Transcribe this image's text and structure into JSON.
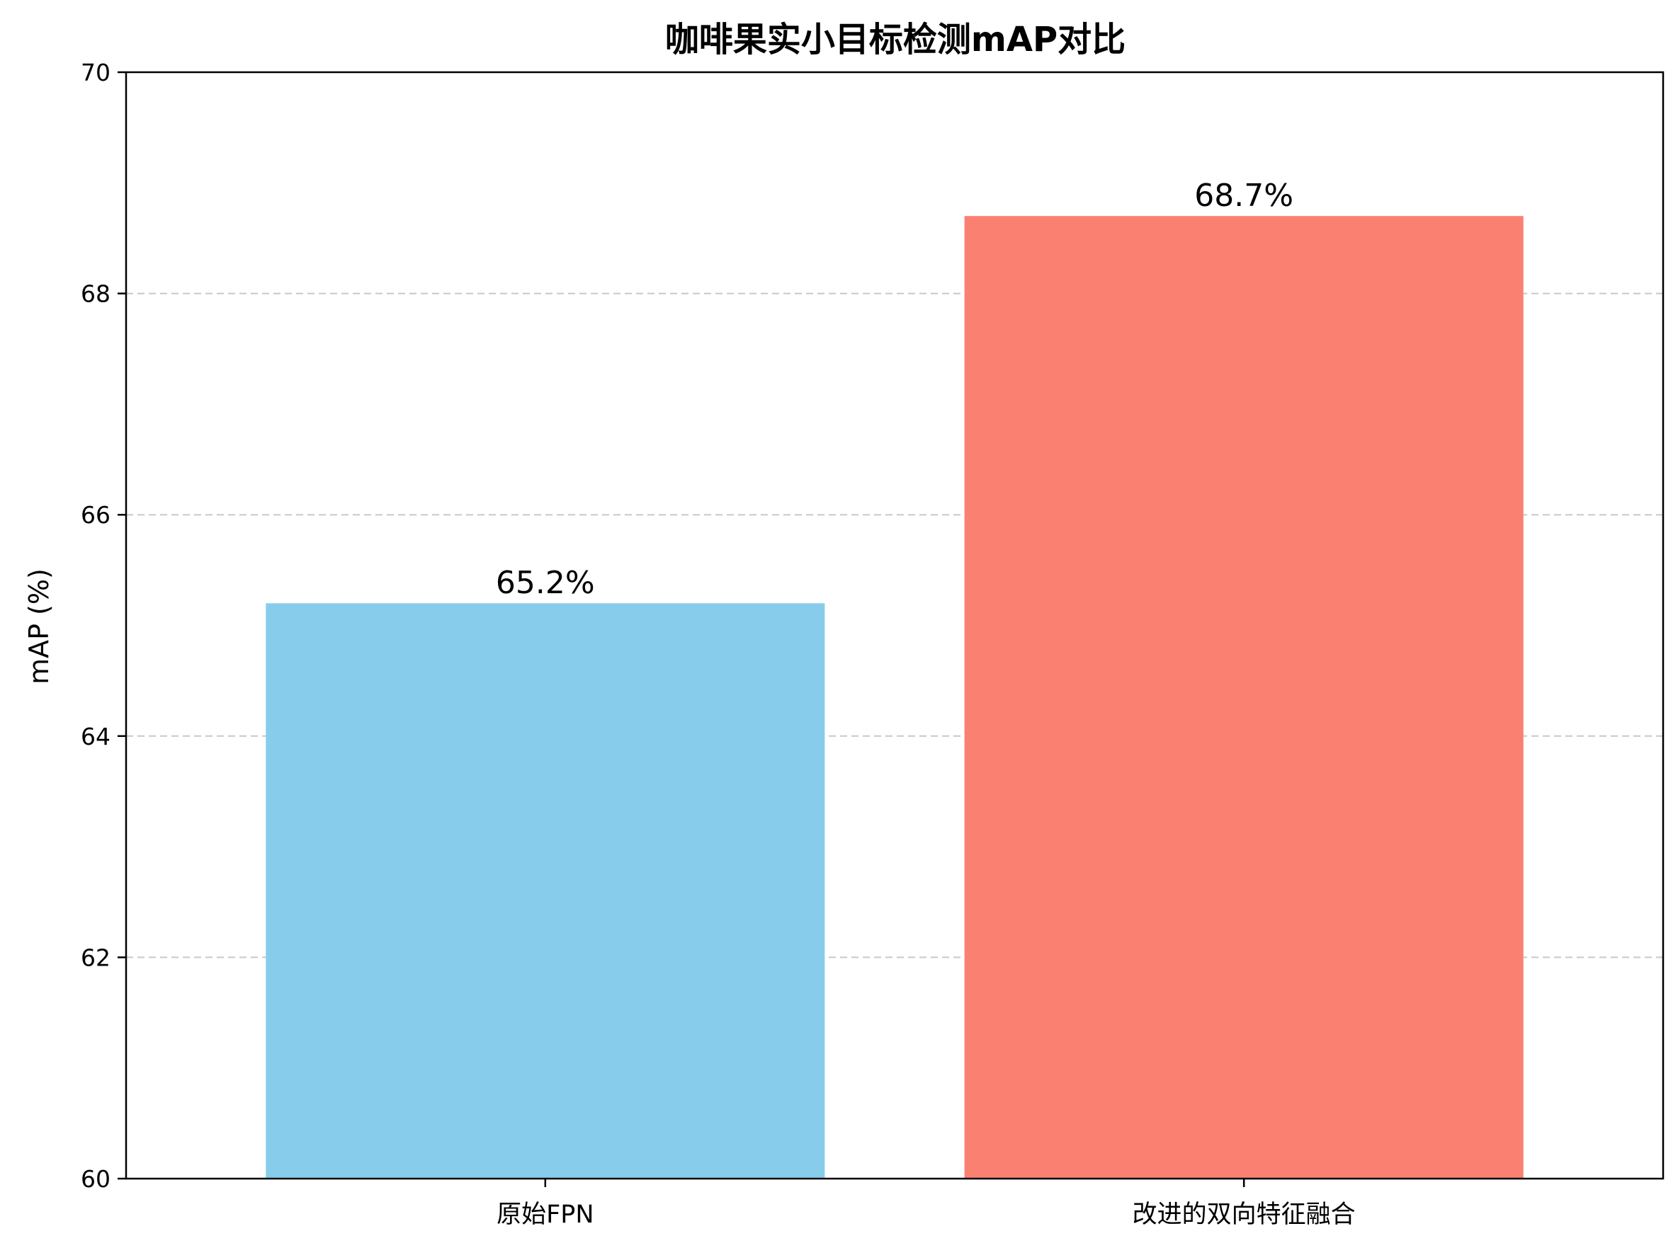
{
  "chart_data": {
    "type": "bar",
    "title": "咖啡果实小目标检测mAP对比",
    "ylabel": "mAP (%)",
    "xlabel": "",
    "categories": [
      "原始FPN",
      "改进的双向特征融合"
    ],
    "values": [
      65.2,
      68.7
    ],
    "value_labels": [
      "65.2%",
      "68.7%"
    ],
    "colors": [
      "#87CDEB",
      "#FA8072"
    ],
    "ylim": [
      60,
      70
    ],
    "yticks": [
      60,
      62,
      64,
      66,
      68,
      70
    ],
    "ytick_labels": [
      "60",
      "62",
      "64",
      "66",
      "68",
      "70"
    ],
    "grid": {
      "axis": "y",
      "style": "dashed",
      "color": "#c8c8c8"
    }
  }
}
